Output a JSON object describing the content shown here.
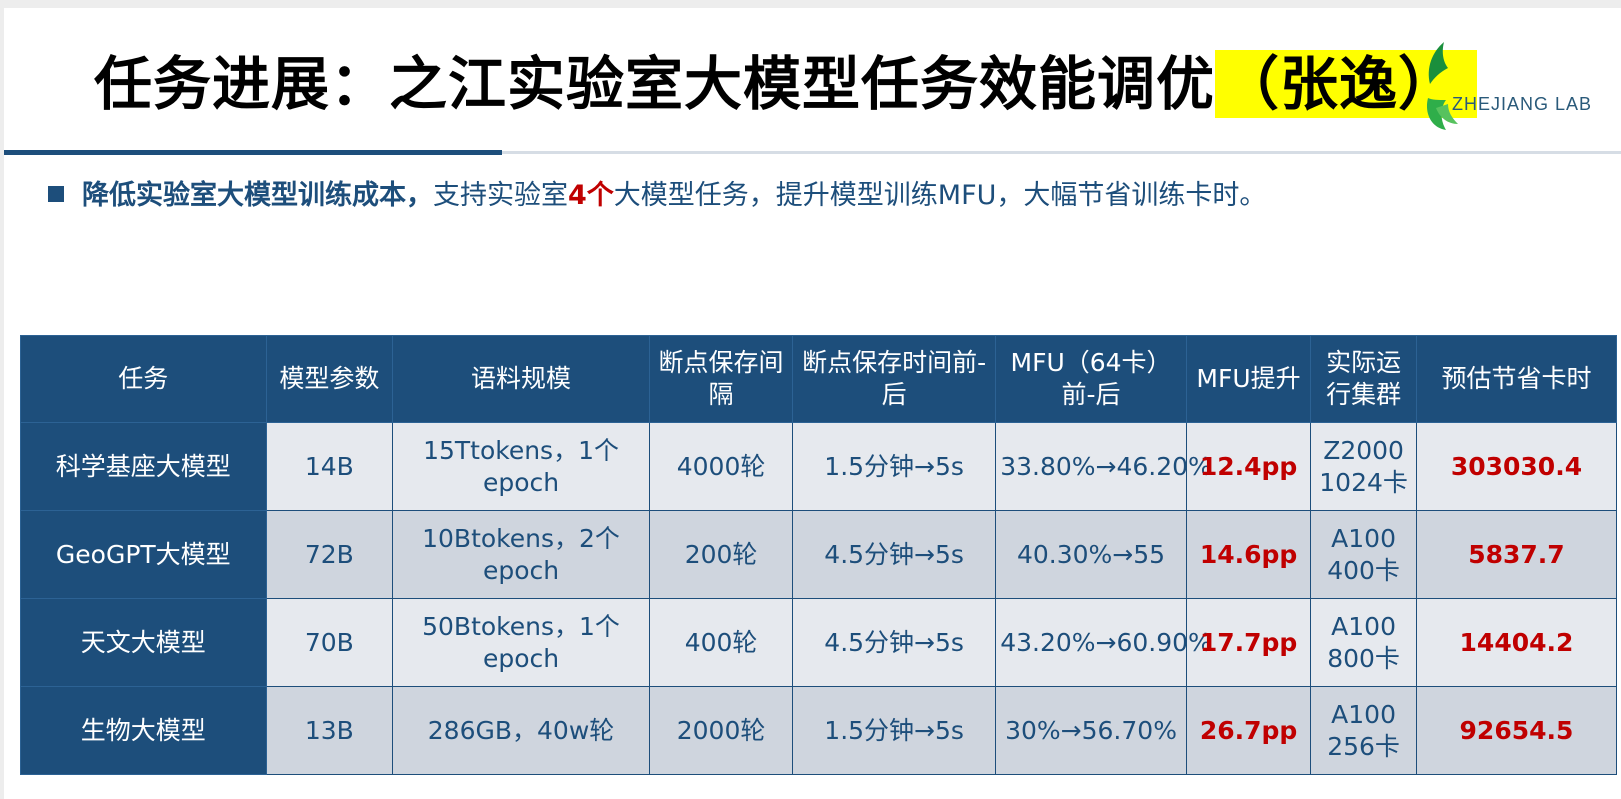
{
  "slide": {
    "title_main": "任务进展：之江实验室大模型任务效能调优",
    "title_highlight": "（张逸）",
    "logo_text": "ZHEJIANG LAB"
  },
  "bullet": {
    "bold_text": "降低实验室大模型训练成本，",
    "text_before_number": "支持实验室",
    "number_text": "4个",
    "text_after_number": "大模型任务，提升模型训练MFU，大幅节省训练卡时。"
  },
  "colors": {
    "navy": "#1d4e7b",
    "red": "#c00000",
    "highlight": "#ffff00",
    "row_light": "#e6e9ee",
    "row_dark": "#cfd5de"
  },
  "table": {
    "headers": [
      "任务",
      "模型参数",
      "语料规模",
      "断点保存间隔",
      "断点保存时间前-后",
      "MFU（64卡）前-后",
      "MFU提升",
      "实际运行集群",
      "预估节省卡时"
    ],
    "rows": [
      [
        "科学基座大模型",
        "14B",
        "15Ttokens，1个epoch",
        "4000轮",
        "1.5分钟→5s",
        "33.80%→46.20%",
        "12.4pp",
        "Z2000 1024卡",
        "303030.4"
      ],
      [
        "GeoGPT大模型",
        "72B",
        "10Btokens，2个epoch",
        "200轮",
        "4.5分钟→5s",
        "40.30%→55",
        "14.6pp",
        "A100 400卡",
        "5837.7"
      ],
      [
        "天文大模型",
        "70B",
        "50Btokens，1个epoch",
        "400轮",
        "4.5分钟→5s",
        "43.20%→60.90%",
        "17.7pp",
        "A100 800卡",
        "14404.2"
      ],
      [
        "生物大模型",
        "13B",
        "286GB，40w轮",
        "2000轮",
        "1.5分钟→5s",
        "30%→56.70%",
        "26.7pp",
        "A100 256卡",
        "92654.5"
      ]
    ]
  }
}
